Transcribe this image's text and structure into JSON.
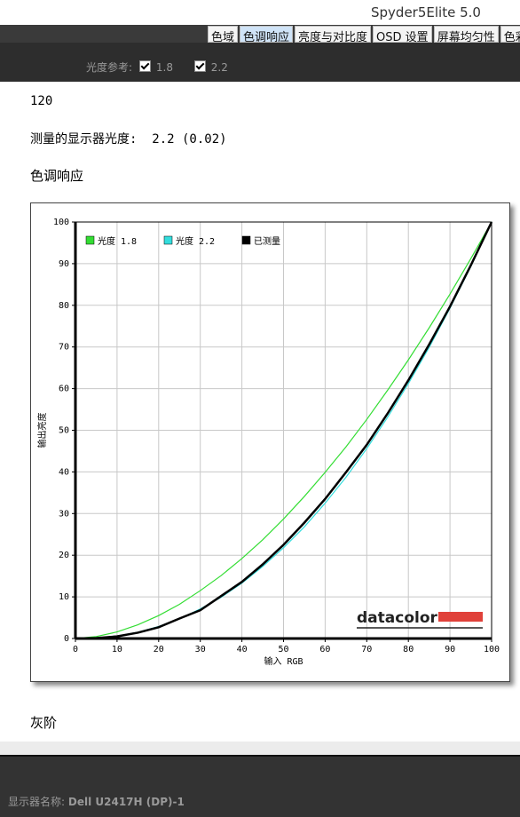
{
  "window": {
    "title": "Spyder5Elite 5.0"
  },
  "tabs": [
    "色域",
    "色调响应",
    "亮度与对比度",
    "OSD 设置",
    "屏幕均匀性",
    "色彩"
  ],
  "toolbar": {
    "label": "光度参考:",
    "options": [
      "1.8",
      "2.2"
    ]
  },
  "content": {
    "value": "120",
    "measured": "测量的显示器光度:  2.2 (0.02)",
    "section": "色调响应",
    "next_section": "灰阶"
  },
  "chart_data": {
    "type": "line",
    "x": [
      0,
      5,
      10,
      15,
      20,
      25,
      30,
      35,
      40,
      45,
      50,
      55,
      60,
      65,
      70,
      75,
      80,
      85,
      90,
      95,
      100
    ],
    "series": [
      {
        "name": "光度 1.8",
        "color": "#33dd33",
        "values": [
          0,
          0.46,
          1.58,
          3.3,
          5.5,
          8.2,
          11.5,
          15.1,
          19.2,
          23.7,
          28.7,
          34.1,
          39.9,
          46.0,
          52.6,
          59.6,
          66.9,
          74.6,
          82.7,
          91.2,
          100
        ]
      },
      {
        "name": "光度 2.2",
        "color": "#33dddd",
        "values": [
          0,
          0.14,
          0.63,
          1.5,
          2.9,
          4.7,
          7.1,
          9.9,
          13.3,
          17.3,
          21.8,
          26.8,
          32.5,
          38.7,
          45.6,
          53.1,
          61.2,
          69.9,
          79.3,
          89.3,
          100
        ]
      },
      {
        "name": "已测量",
        "color": "#000000",
        "values": [
          0,
          0.1,
          0.5,
          1.4,
          2.7,
          4.8,
          6.8,
          10.2,
          13.6,
          17.8,
          22.5,
          27.8,
          33.5,
          39.9,
          46.5,
          54.0,
          62.0,
          70.6,
          79.7,
          89.6,
          100
        ]
      }
    ],
    "xlabel": "输入 RGB",
    "ylabel": "输出亮度",
    "xlim": [
      0,
      100
    ],
    "ylim": [
      0,
      100
    ],
    "xticks": [
      0,
      10,
      20,
      30,
      40,
      50,
      60,
      70,
      80,
      90,
      100
    ],
    "yticks": [
      0,
      10,
      20,
      30,
      40,
      50,
      60,
      70,
      80,
      90,
      100
    ],
    "grid": true,
    "legend": "upper left",
    "logo": "datacolor"
  },
  "status": {
    "label": "显示器名称:",
    "value": "Dell U2417H (DP)-1"
  }
}
